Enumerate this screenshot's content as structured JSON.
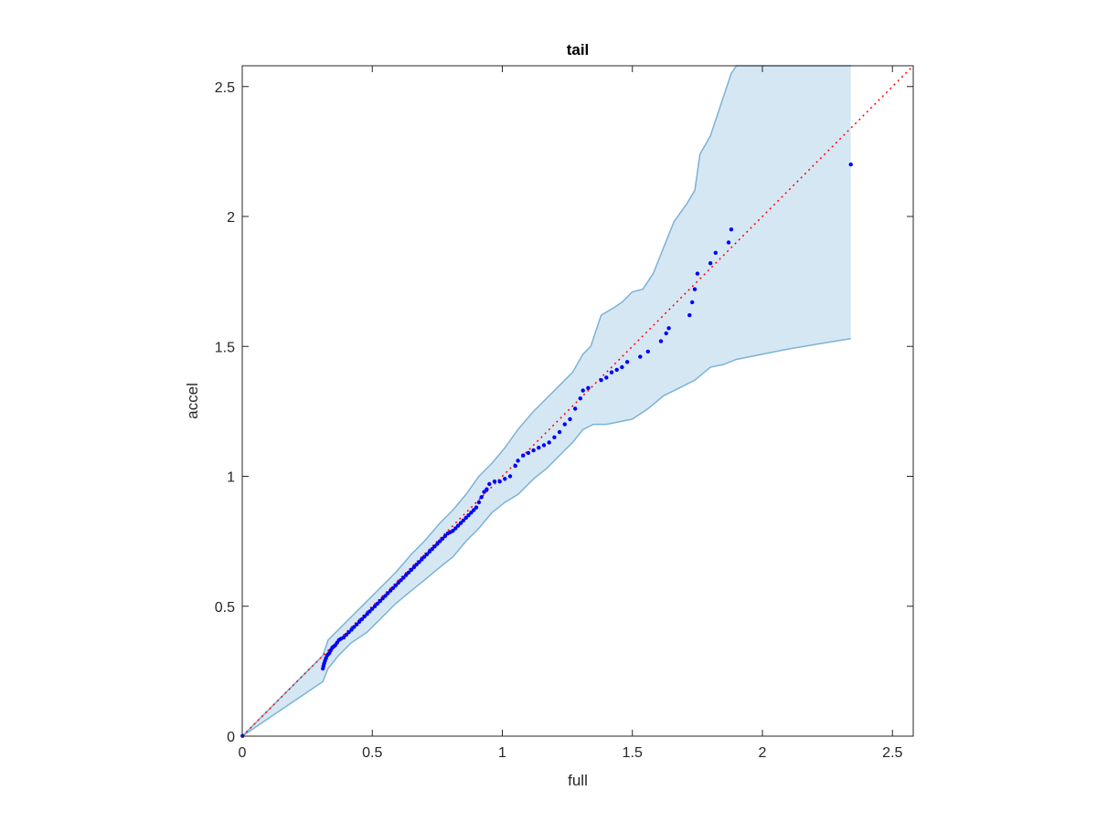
{
  "chart_data": {
    "type": "scatter",
    "title": "tail",
    "xlabel": "full",
    "ylabel": "accel",
    "xlim": [
      0,
      2.58
    ],
    "ylim": [
      0,
      2.58
    ],
    "grid": false,
    "legend": "none",
    "xticks": [
      {
        "value": 0,
        "label": "0"
      },
      {
        "value": 0.5,
        "label": "0.5"
      },
      {
        "value": 1,
        "label": "1"
      },
      {
        "value": 1.5,
        "label": "1.5"
      },
      {
        "value": 2,
        "label": "2"
      },
      {
        "value": 2.5,
        "label": "2.5"
      }
    ],
    "yticks": [
      {
        "value": 0,
        "label": "0"
      },
      {
        "value": 0.5,
        "label": "0.5"
      },
      {
        "value": 1,
        "label": "1"
      },
      {
        "value": 1.5,
        "label": "1.5"
      },
      {
        "value": 2,
        "label": "2"
      },
      {
        "value": 2.5,
        "label": "2.5"
      }
    ],
    "reference_line": {
      "x": [
        0,
        2.58
      ],
      "y": [
        0,
        2.58
      ],
      "color": "#ff0000",
      "style": "dotted"
    },
    "band": {
      "fill": "#d6e7f4",
      "stroke": "#7ab3d6",
      "upper": [
        [
          0,
          0
        ],
        [
          0.31,
          0.31
        ],
        [
          0.33,
          0.37
        ],
        [
          0.37,
          0.41
        ],
        [
          0.42,
          0.46
        ],
        [
          0.48,
          0.52
        ],
        [
          0.54,
          0.58
        ],
        [
          0.59,
          0.63
        ],
        [
          0.65,
          0.7
        ],
        [
          0.7,
          0.75
        ],
        [
          0.76,
          0.82
        ],
        [
          0.81,
          0.87
        ],
        [
          0.86,
          0.93
        ],
        [
          0.91,
          1.0
        ],
        [
          0.96,
          1.05
        ],
        [
          1.01,
          1.11
        ],
        [
          1.06,
          1.18
        ],
        [
          1.12,
          1.25
        ],
        [
          1.17,
          1.3
        ],
        [
          1.22,
          1.35
        ],
        [
          1.27,
          1.4
        ],
        [
          1.31,
          1.47
        ],
        [
          1.34,
          1.5
        ],
        [
          1.38,
          1.62
        ],
        [
          1.43,
          1.65
        ],
        [
          1.46,
          1.67
        ],
        [
          1.5,
          1.71
        ],
        [
          1.54,
          1.72
        ],
        [
          1.58,
          1.78
        ],
        [
          1.62,
          1.88
        ],
        [
          1.66,
          1.98
        ],
        [
          1.71,
          2.05
        ],
        [
          1.74,
          2.1
        ],
        [
          1.76,
          2.24
        ],
        [
          1.8,
          2.31
        ],
        [
          1.85,
          2.46
        ],
        [
          1.88,
          2.55
        ],
        [
          1.9,
          2.58
        ],
        [
          2.34,
          2.58
        ]
      ],
      "lower": [
        [
          0,
          0
        ],
        [
          0.31,
          0.21
        ],
        [
          0.33,
          0.26
        ],
        [
          0.37,
          0.31
        ],
        [
          0.42,
          0.36
        ],
        [
          0.48,
          0.4
        ],
        [
          0.54,
          0.46
        ],
        [
          0.59,
          0.51
        ],
        [
          0.65,
          0.56
        ],
        [
          0.7,
          0.6
        ],
        [
          0.76,
          0.65
        ],
        [
          0.81,
          0.69
        ],
        [
          0.86,
          0.75
        ],
        [
          0.91,
          0.8
        ],
        [
          0.96,
          0.86
        ],
        [
          1.01,
          0.9
        ],
        [
          1.06,
          0.93
        ],
        [
          1.12,
          0.99
        ],
        [
          1.17,
          1.03
        ],
        [
          1.22,
          1.08
        ],
        [
          1.27,
          1.13
        ],
        [
          1.31,
          1.18
        ],
        [
          1.35,
          1.2
        ],
        [
          1.4,
          1.2
        ],
        [
          1.45,
          1.21
        ],
        [
          1.5,
          1.22
        ],
        [
          1.56,
          1.26
        ],
        [
          1.62,
          1.31
        ],
        [
          1.68,
          1.34
        ],
        [
          1.74,
          1.37
        ],
        [
          1.8,
          1.42
        ],
        [
          1.85,
          1.43
        ],
        [
          1.9,
          1.45
        ],
        [
          2.1,
          1.49
        ],
        [
          2.34,
          1.53
        ]
      ]
    },
    "series": [
      {
        "color": "#0000ff",
        "points": [
          [
            0.001,
            0.001
          ],
          [
            0.31,
            0.26
          ],
          [
            0.312,
            0.27
          ],
          [
            0.315,
            0.28
          ],
          [
            0.318,
            0.29
          ],
          [
            0.322,
            0.3
          ],
          [
            0.326,
            0.31
          ],
          [
            0.33,
            0.315
          ],
          [
            0.335,
            0.32
          ],
          [
            0.34,
            0.33
          ],
          [
            0.346,
            0.34
          ],
          [
            0.352,
            0.345
          ],
          [
            0.358,
            0.35
          ],
          [
            0.365,
            0.36
          ],
          [
            0.372,
            0.37
          ],
          [
            0.38,
            0.375
          ],
          [
            0.39,
            0.38
          ],
          [
            0.4,
            0.39
          ],
          [
            0.41,
            0.4
          ],
          [
            0.42,
            0.41
          ],
          [
            0.43,
            0.42
          ],
          [
            0.44,
            0.43
          ],
          [
            0.45,
            0.44
          ],
          [
            0.46,
            0.45
          ],
          [
            0.47,
            0.46
          ],
          [
            0.48,
            0.47
          ],
          [
            0.49,
            0.48
          ],
          [
            0.5,
            0.49
          ],
          [
            0.51,
            0.5
          ],
          [
            0.52,
            0.51
          ],
          [
            0.53,
            0.52
          ],
          [
            0.54,
            0.53
          ],
          [
            0.55,
            0.54
          ],
          [
            0.56,
            0.55
          ],
          [
            0.57,
            0.56
          ],
          [
            0.58,
            0.57
          ],
          [
            0.59,
            0.58
          ],
          [
            0.6,
            0.59
          ],
          [
            0.61,
            0.6
          ],
          [
            0.62,
            0.61
          ],
          [
            0.63,
            0.62
          ],
          [
            0.64,
            0.63
          ],
          [
            0.65,
            0.64
          ],
          [
            0.66,
            0.65
          ],
          [
            0.67,
            0.66
          ],
          [
            0.68,
            0.67
          ],
          [
            0.69,
            0.68
          ],
          [
            0.7,
            0.69
          ],
          [
            0.71,
            0.7
          ],
          [
            0.72,
            0.71
          ],
          [
            0.73,
            0.72
          ],
          [
            0.74,
            0.73
          ],
          [
            0.75,
            0.74
          ],
          [
            0.76,
            0.75
          ],
          [
            0.77,
            0.76
          ],
          [
            0.78,
            0.77
          ],
          [
            0.79,
            0.78
          ],
          [
            0.8,
            0.785
          ],
          [
            0.81,
            0.79
          ],
          [
            0.82,
            0.8
          ],
          [
            0.83,
            0.81
          ],
          [
            0.84,
            0.82
          ],
          [
            0.85,
            0.83
          ],
          [
            0.86,
            0.84
          ],
          [
            0.87,
            0.85
          ],
          [
            0.88,
            0.86
          ],
          [
            0.89,
            0.87
          ],
          [
            0.9,
            0.88
          ],
          [
            0.91,
            0.9
          ],
          [
            0.92,
            0.92
          ],
          [
            0.93,
            0.94
          ],
          [
            0.94,
            0.95
          ],
          [
            0.95,
            0.97
          ],
          [
            0.97,
            0.98
          ],
          [
            0.99,
            0.98
          ],
          [
            1.01,
            0.99
          ],
          [
            1.03,
            1.0
          ],
          [
            1.05,
            1.04
          ],
          [
            1.06,
            1.06
          ],
          [
            1.08,
            1.08
          ],
          [
            1.1,
            1.09
          ],
          [
            1.12,
            1.1
          ],
          [
            1.14,
            1.11
          ],
          [
            1.16,
            1.12
          ],
          [
            1.18,
            1.13
          ],
          [
            1.2,
            1.15
          ],
          [
            1.22,
            1.17
          ],
          [
            1.24,
            1.2
          ],
          [
            1.26,
            1.22
          ],
          [
            1.28,
            1.26
          ],
          [
            1.3,
            1.3
          ],
          [
            1.31,
            1.33
          ],
          [
            1.33,
            1.34
          ],
          [
            1.38,
            1.37
          ],
          [
            1.4,
            1.38
          ],
          [
            1.42,
            1.4
          ],
          [
            1.44,
            1.41
          ],
          [
            1.46,
            1.42
          ],
          [
            1.48,
            1.44
          ],
          [
            1.53,
            1.46
          ],
          [
            1.56,
            1.48
          ],
          [
            1.61,
            1.52
          ],
          [
            1.63,
            1.55
          ],
          [
            1.64,
            1.57
          ],
          [
            1.72,
            1.62
          ],
          [
            1.73,
            1.67
          ],
          [
            1.74,
            1.72
          ],
          [
            1.75,
            1.78
          ],
          [
            1.8,
            1.82
          ],
          [
            1.82,
            1.86
          ],
          [
            1.87,
            1.9
          ],
          [
            1.88,
            1.95
          ],
          [
            2.34,
            2.2
          ]
        ]
      }
    ]
  }
}
